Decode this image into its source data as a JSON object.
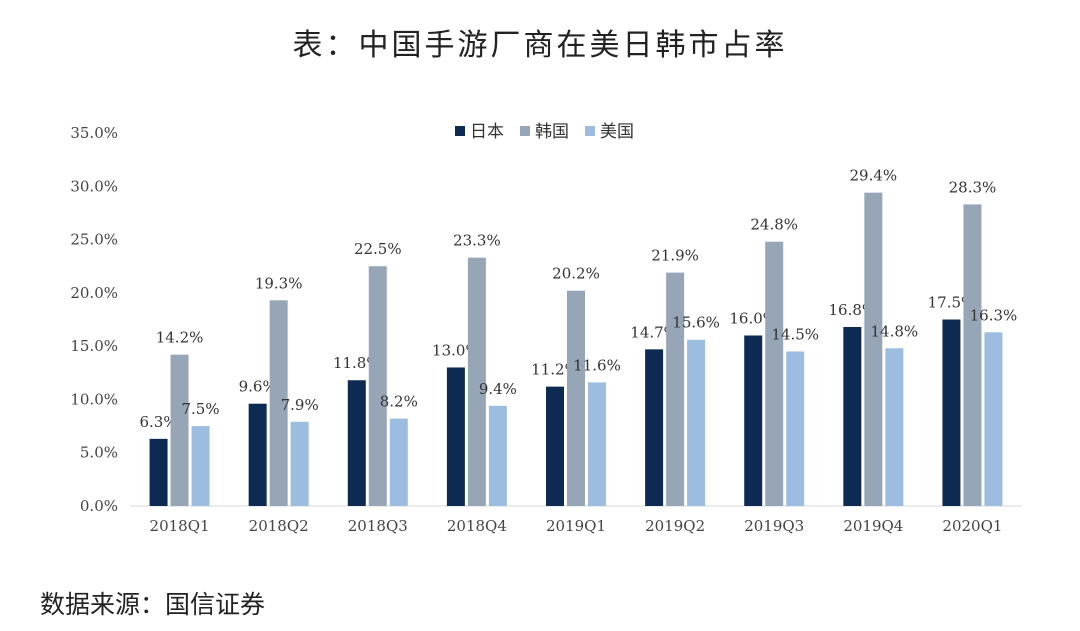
{
  "title": "表：中国手游厂商在美日韩市占率",
  "source": "数据来源：国信证券",
  "chart_data": {
    "type": "bar",
    "categories": [
      "2018Q1",
      "2018Q2",
      "2018Q3",
      "2018Q4",
      "2019Q1",
      "2019Q2",
      "2019Q3",
      "2019Q4",
      "2020Q1"
    ],
    "series": [
      {
        "name": "日本",
        "color": "#0d2b52",
        "values": [
          6.3,
          9.6,
          11.8,
          13.0,
          11.2,
          14.7,
          16.0,
          16.8,
          17.5
        ]
      },
      {
        "name": "韩国",
        "color": "#97a6b6",
        "values": [
          14.2,
          19.3,
          22.5,
          23.3,
          20.2,
          21.9,
          24.8,
          29.4,
          28.3
        ]
      },
      {
        "name": "美国",
        "color": "#9dbde0",
        "values": [
          7.5,
          7.9,
          8.2,
          9.4,
          11.6,
          15.6,
          14.5,
          14.8,
          16.3
        ]
      }
    ],
    "data_labels": [
      [
        "6.3%",
        "9.6%",
        "11.8%",
        "13.0%",
        "11.2%",
        "14.7%",
        "16.0%",
        "16.8%",
        "17.5%"
      ],
      [
        "14.2%",
        "19.3%",
        "22.5%",
        "23.3%",
        "20.2%",
        "21.9%",
        "24.8%",
        "29.4%",
        "28.3%"
      ],
      [
        "7.5%",
        "7.9%",
        "8.2%",
        "9.4%",
        "11.6%",
        "15.6%",
        "14.5%",
        "14.8%",
        "16.3%"
      ]
    ],
    "y_ticks": [
      0,
      5,
      10,
      15,
      20,
      25,
      30,
      35
    ],
    "y_tick_labels": [
      "0.0%",
      "5.0%",
      "10.0%",
      "15.0%",
      "20.0%",
      "25.0%",
      "30.0%",
      "35.0%"
    ],
    "ylim": [
      0,
      35
    ],
    "xlabel": "",
    "ylabel": "",
    "legend_position": "top-center",
    "grid": false
  }
}
